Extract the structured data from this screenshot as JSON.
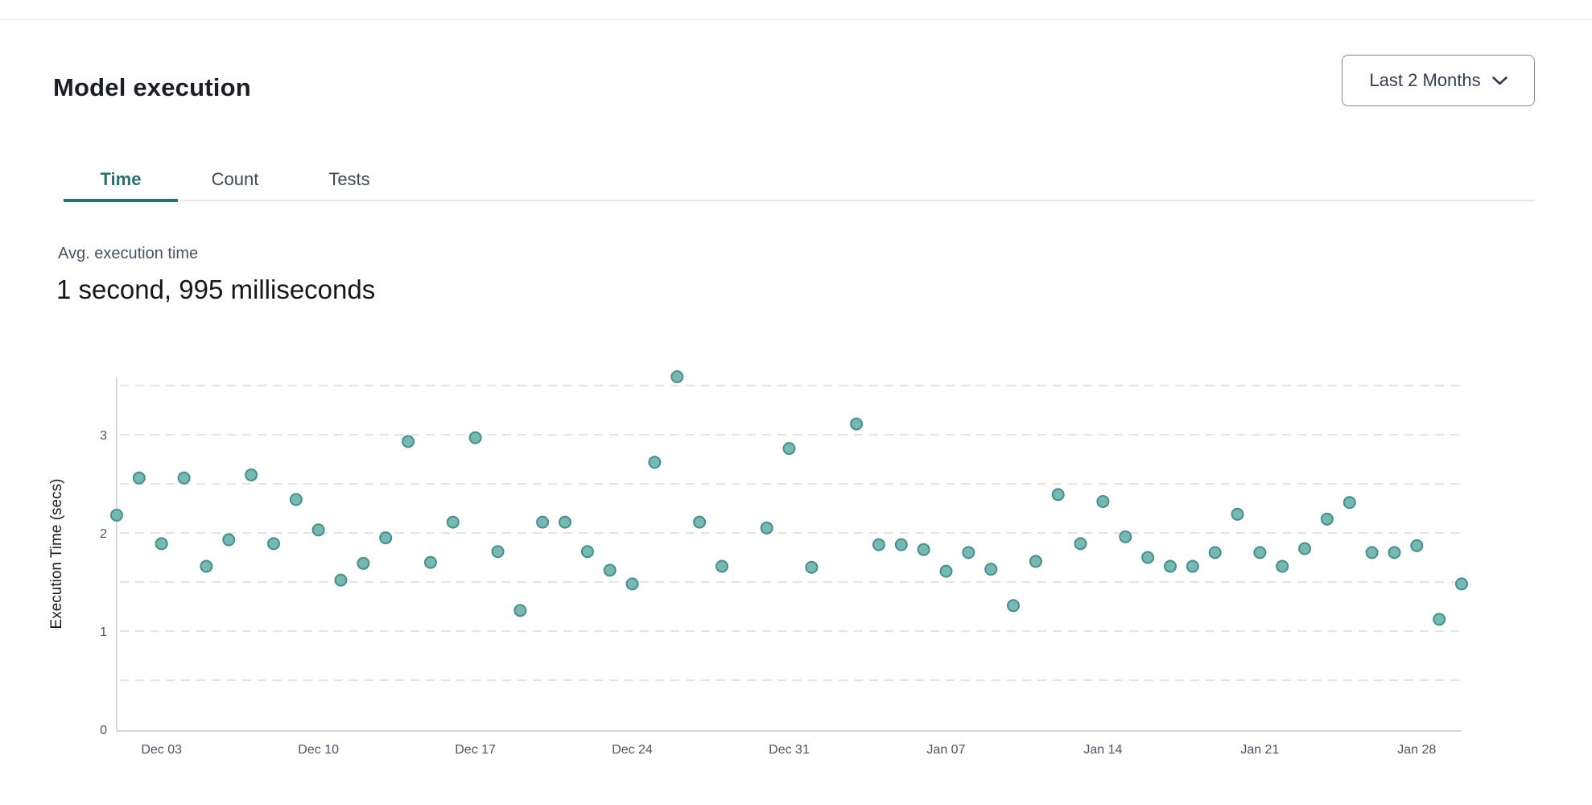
{
  "header": {
    "title": "Model execution",
    "range_button": {
      "label": "Last 2 Months",
      "icon": "chevron-down-icon"
    }
  },
  "tabs": [
    {
      "label": "Time",
      "active": true
    },
    {
      "label": "Count",
      "active": false
    },
    {
      "label": "Tests",
      "active": false
    }
  ],
  "summary": {
    "label": "Avg. execution time",
    "value": "1 second, 995 milliseconds"
  },
  "colors": {
    "accent_teal": "#2a7170",
    "dot_fill": "#77b8b3",
    "dot_stroke": "#43908b",
    "gridline": "#e3e4e9",
    "axis_line": "#d8d8dd",
    "tick_text": "#4a5463",
    "axis_title_text": "#181b20"
  },
  "chart_data": {
    "type": "scatter",
    "title": "",
    "xlabel": "",
    "ylabel": "Execution Time (secs)",
    "ylim": [
      0,
      3.66
    ],
    "y_ticks": [
      0,
      1,
      2,
      3
    ],
    "gridline_step": 0.5,
    "grid": "dashed horizontal",
    "legend": "none",
    "x_tick_labels": [
      "Dec 03",
      "Dec 10",
      "Dec 17",
      "Dec 24",
      "Dec 31",
      "Jan 07",
      "Jan 14",
      "Jan 21",
      "Jan 28"
    ],
    "points": [
      {
        "date": "Dec 01",
        "secs": 2.18
      },
      {
        "date": "Dec 02",
        "secs": 2.56
      },
      {
        "date": "Dec 03",
        "secs": 1.89
      },
      {
        "date": "Dec 04",
        "secs": 2.56
      },
      {
        "date": "Dec 05",
        "secs": 1.66
      },
      {
        "date": "Dec 06",
        "secs": 1.93
      },
      {
        "date": "Dec 07",
        "secs": 2.59
      },
      {
        "date": "Dec 08",
        "secs": 1.89
      },
      {
        "date": "Dec 09",
        "secs": 2.34
      },
      {
        "date": "Dec 10",
        "secs": 2.03
      },
      {
        "date": "Dec 11",
        "secs": 1.52
      },
      {
        "date": "Dec 12",
        "secs": 1.69
      },
      {
        "date": "Dec 13",
        "secs": 1.95
      },
      {
        "date": "Dec 14",
        "secs": 2.93
      },
      {
        "date": "Dec 15",
        "secs": 1.7
      },
      {
        "date": "Dec 16",
        "secs": 2.11
      },
      {
        "date": "Dec 17",
        "secs": 2.97
      },
      {
        "date": "Dec 18",
        "secs": 1.81
      },
      {
        "date": "Dec 19",
        "secs": 1.21
      },
      {
        "date": "Dec 20",
        "secs": 2.11
      },
      {
        "date": "Dec 21",
        "secs": 2.11
      },
      {
        "date": "Dec 22",
        "secs": 1.81
      },
      {
        "date": "Dec 23",
        "secs": 1.62
      },
      {
        "date": "Dec 24",
        "secs": 1.48
      },
      {
        "date": "Dec 25",
        "secs": 2.72
      },
      {
        "date": "Dec 26",
        "secs": 3.59
      },
      {
        "date": "Dec 27",
        "secs": 2.11
      },
      {
        "date": "Dec 28",
        "secs": 1.66
      },
      {
        "date": "Dec 30",
        "secs": 2.05
      },
      {
        "date": "Dec 31",
        "secs": 2.86
      },
      {
        "date": "Jan 01",
        "secs": 1.65
      },
      {
        "date": "Jan 03",
        "secs": 3.11
      },
      {
        "date": "Jan 04",
        "secs": 1.88
      },
      {
        "date": "Jan 05",
        "secs": 1.88
      },
      {
        "date": "Jan 06",
        "secs": 1.83
      },
      {
        "date": "Jan 07",
        "secs": 1.61
      },
      {
        "date": "Jan 08",
        "secs": 1.8
      },
      {
        "date": "Jan 09",
        "secs": 1.63
      },
      {
        "date": "Jan 10",
        "secs": 1.26
      },
      {
        "date": "Jan 11",
        "secs": 1.71
      },
      {
        "date": "Jan 12",
        "secs": 2.39
      },
      {
        "date": "Jan 13",
        "secs": 1.89
      },
      {
        "date": "Jan 14",
        "secs": 2.32
      },
      {
        "date": "Jan 15",
        "secs": 1.96
      },
      {
        "date": "Jan 16",
        "secs": 1.75
      },
      {
        "date": "Jan 17",
        "secs": 1.66
      },
      {
        "date": "Jan 18",
        "secs": 1.66
      },
      {
        "date": "Jan 19",
        "secs": 1.8
      },
      {
        "date": "Jan 20",
        "secs": 2.19
      },
      {
        "date": "Jan 21",
        "secs": 1.8
      },
      {
        "date": "Jan 22",
        "secs": 1.66
      },
      {
        "date": "Jan 23",
        "secs": 1.84
      },
      {
        "date": "Jan 24",
        "secs": 2.14
      },
      {
        "date": "Jan 25",
        "secs": 2.31
      },
      {
        "date": "Jan 26",
        "secs": 1.8
      },
      {
        "date": "Jan 27",
        "secs": 1.8
      },
      {
        "date": "Jan 28",
        "secs": 1.87
      },
      {
        "date": "Jan 29",
        "secs": 1.12
      },
      {
        "date": "Jan 30",
        "secs": 1.48
      }
    ]
  }
}
